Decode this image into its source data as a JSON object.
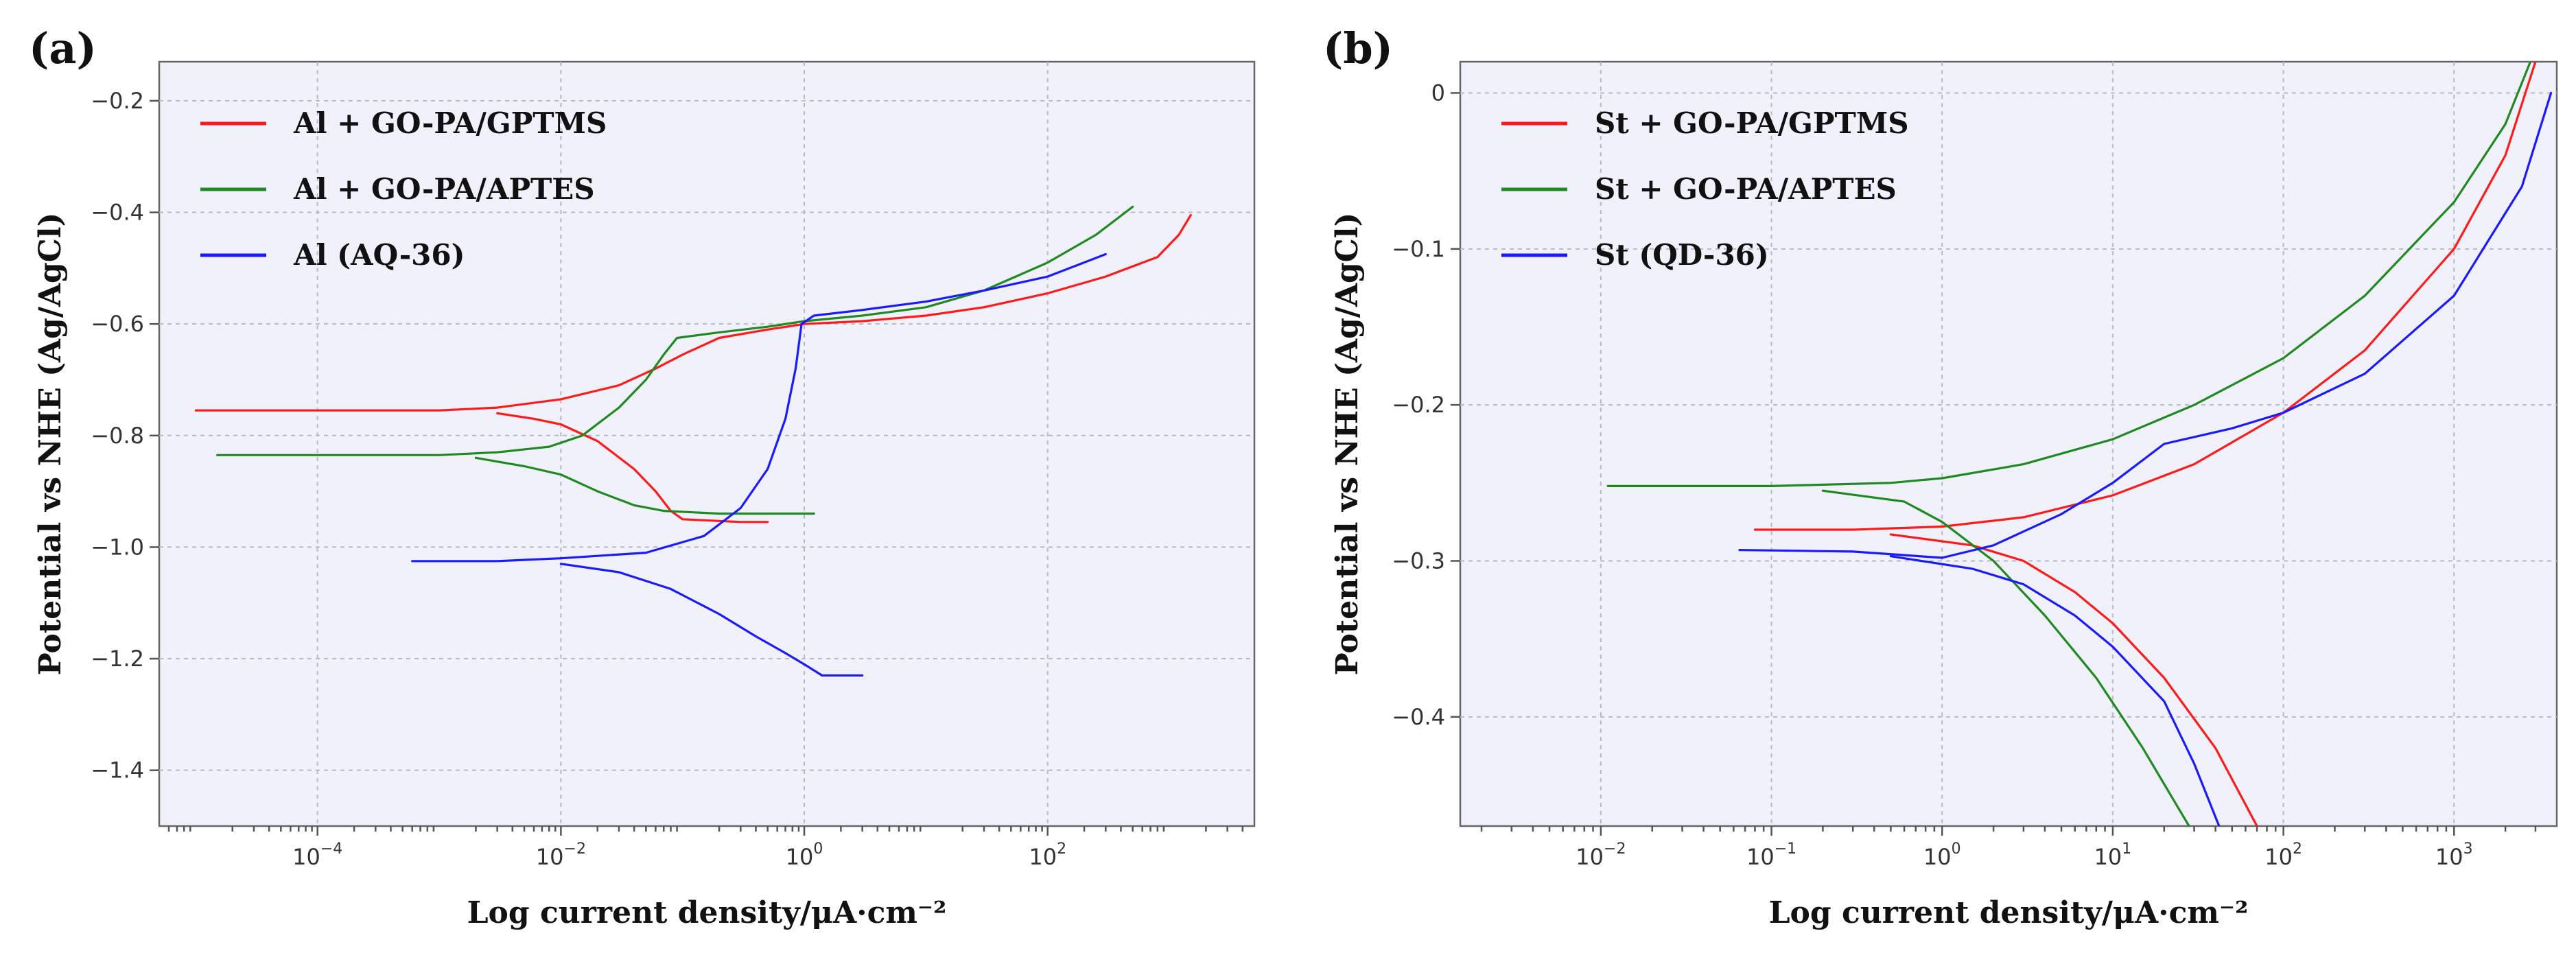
{
  "chart_data": [
    {
      "type": "line",
      "panel_label": "(a)",
      "xlabel": "Log current density/μA·cm⁻²",
      "ylabel": "Potential vs NHE (Ag/AgCl)",
      "xscale": "log",
      "xlim": [
        5e-06,
        5000
      ],
      "ylim": [
        -1.5,
        -0.13
      ],
      "xticks": [
        {
          "value": 0.0001,
          "base": "10",
          "exp": "−4"
        },
        {
          "value": 0.01,
          "base": "10",
          "exp": "−2"
        },
        {
          "value": 1,
          "base": "10",
          "exp": "0"
        },
        {
          "value": 100,
          "base": "10",
          "exp": "2"
        }
      ],
      "yticks": [
        {
          "value": -0.2,
          "label": "−0.2"
        },
        {
          "value": -0.4,
          "label": "−0.4"
        },
        {
          "value": -0.6,
          "label": "−0.6"
        },
        {
          "value": -0.8,
          "label": "−0.8"
        },
        {
          "value": -1.0,
          "label": "−1.0"
        },
        {
          "value": -1.2,
          "label": "−1.2"
        },
        {
          "value": -1.4,
          "label": "−1.4"
        }
      ],
      "grid": true,
      "legend_position": "top-left",
      "series": [
        {
          "name": "Al + GO-PA/GPTMS",
          "color": "#ff1a1a",
          "branches": [
            [
              [
                1e-05,
                -0.755
              ],
              [
                0.0003,
                -0.755
              ],
              [
                0.001,
                -0.755
              ],
              [
                0.003,
                -0.75
              ],
              [
                0.01,
                -0.735
              ],
              [
                0.03,
                -0.71
              ],
              [
                0.06,
                -0.68
              ],
              [
                0.1,
                -0.655
              ],
              [
                0.2,
                -0.625
              ],
              [
                0.5,
                -0.61
              ],
              [
                1,
                -0.6
              ],
              [
                3,
                -0.595
              ],
              [
                10,
                -0.585
              ],
              [
                30,
                -0.57
              ],
              [
                100,
                -0.545
              ],
              [
                300,
                -0.515
              ],
              [
                800,
                -0.48
              ],
              [
                1200,
                -0.44
              ],
              [
                1500,
                -0.405
              ]
            ],
            [
              [
                0.003,
                -0.76
              ],
              [
                0.006,
                -0.77
              ],
              [
                0.01,
                -0.78
              ],
              [
                0.02,
                -0.81
              ],
              [
                0.04,
                -0.86
              ],
              [
                0.06,
                -0.9
              ],
              [
                0.08,
                -0.935
              ],
              [
                0.1,
                -0.95
              ],
              [
                0.3,
                -0.955
              ],
              [
                0.5,
                -0.955
              ]
            ]
          ]
        },
        {
          "name": "Al + GO-PA/APTES",
          "color": "#1f8a1f",
          "branches": [
            [
              [
                1.5e-05,
                -0.835
              ],
              [
                0.001,
                -0.835
              ],
              [
                0.003,
                -0.83
              ],
              [
                0.008,
                -0.82
              ],
              [
                0.015,
                -0.8
              ],
              [
                0.03,
                -0.75
              ],
              [
                0.05,
                -0.7
              ],
              [
                0.07,
                -0.655
              ],
              [
                0.09,
                -0.625
              ],
              [
                0.2,
                -0.615
              ],
              [
                0.5,
                -0.605
              ],
              [
                1,
                -0.595
              ],
              [
                3,
                -0.585
              ],
              [
                10,
                -0.57
              ],
              [
                30,
                -0.54
              ],
              [
                100,
                -0.49
              ],
              [
                250,
                -0.44
              ],
              [
                500,
                -0.39
              ]
            ],
            [
              [
                0.002,
                -0.84
              ],
              [
                0.005,
                -0.855
              ],
              [
                0.01,
                -0.87
              ],
              [
                0.02,
                -0.9
              ],
              [
                0.04,
                -0.925
              ],
              [
                0.07,
                -0.935
              ],
              [
                0.2,
                -0.94
              ],
              [
                0.6,
                -0.94
              ],
              [
                1.2,
                -0.94
              ]
            ]
          ]
        },
        {
          "name": "Al (AQ-36)",
          "color": "#1a1aff",
          "branches": [
            [
              [
                0.0006,
                -1.025
              ],
              [
                0.003,
                -1.025
              ],
              [
                0.01,
                -1.02
              ],
              [
                0.05,
                -1.01
              ],
              [
                0.15,
                -0.98
              ],
              [
                0.3,
                -0.93
              ],
              [
                0.5,
                -0.86
              ],
              [
                0.7,
                -0.77
              ],
              [
                0.85,
                -0.68
              ],
              [
                0.95,
                -0.6
              ],
              [
                1.2,
                -0.585
              ],
              [
                3,
                -0.575
              ],
              [
                10,
                -0.56
              ],
              [
                30,
                -0.54
              ],
              [
                100,
                -0.515
              ],
              [
                300,
                -0.475
              ]
            ],
            [
              [
                0.01,
                -1.03
              ],
              [
                0.03,
                -1.045
              ],
              [
                0.08,
                -1.075
              ],
              [
                0.2,
                -1.12
              ],
              [
                0.4,
                -1.16
              ],
              [
                0.7,
                -1.19
              ],
              [
                1.0,
                -1.21
              ],
              [
                1.4,
                -1.23
              ],
              [
                3,
                -1.23
              ]
            ]
          ]
        }
      ]
    },
    {
      "type": "line",
      "panel_label": "(b)",
      "xlabel": "Log current density/μA·cm⁻²",
      "ylabel": "Potential vs NHE (Ag/AgCl)",
      "xscale": "log",
      "xlim": [
        0.0015,
        4000
      ],
      "ylim": [
        -0.47,
        0.02
      ],
      "xticks": [
        {
          "value": 0.01,
          "base": "10",
          "exp": "−2"
        },
        {
          "value": 0.1,
          "base": "10",
          "exp": "−1"
        },
        {
          "value": 1,
          "base": "10",
          "exp": "0"
        },
        {
          "value": 10,
          "base": "10",
          "exp": "1"
        },
        {
          "value": 100,
          "base": "10",
          "exp": "2"
        },
        {
          "value": 1000,
          "base": "10",
          "exp": "3"
        }
      ],
      "yticks": [
        {
          "value": 0,
          "label": "0"
        },
        {
          "value": -0.1,
          "label": "−0.1"
        },
        {
          "value": -0.2,
          "label": "−0.2"
        },
        {
          "value": -0.3,
          "label": "−0.3"
        },
        {
          "value": -0.4,
          "label": "−0.4"
        }
      ],
      "grid": true,
      "legend_position": "top-left",
      "series": [
        {
          "name": "St + GO-PA/GPTMS",
          "color": "#ff1a1a",
          "branches": [
            [
              [
                0.08,
                -0.28
              ],
              [
                0.3,
                -0.28
              ],
              [
                1,
                -0.278
              ],
              [
                3,
                -0.272
              ],
              [
                10,
                -0.258
              ],
              [
                30,
                -0.238
              ],
              [
                100,
                -0.205
              ],
              [
                300,
                -0.165
              ],
              [
                1000,
                -0.1
              ],
              [
                2000,
                -0.04
              ],
              [
                3000,
                0.02
              ]
            ],
            [
              [
                0.5,
                -0.283
              ],
              [
                1.5,
                -0.29
              ],
              [
                3,
                -0.3
              ],
              [
                6,
                -0.32
              ],
              [
                10,
                -0.34
              ],
              [
                20,
                -0.375
              ],
              [
                40,
                -0.42
              ],
              [
                70,
                -0.47
              ]
            ]
          ]
        },
        {
          "name": "St + GO-PA/APTES",
          "color": "#1f8a1f",
          "branches": [
            [
              [
                0.011,
                -0.252
              ],
              [
                0.1,
                -0.252
              ],
              [
                0.5,
                -0.25
              ],
              [
                1,
                -0.247
              ],
              [
                3,
                -0.238
              ],
              [
                10,
                -0.222
              ],
              [
                30,
                -0.2
              ],
              [
                100,
                -0.17
              ],
              [
                300,
                -0.13
              ],
              [
                1000,
                -0.07
              ],
              [
                2000,
                -0.02
              ],
              [
                2800,
                0.02
              ]
            ],
            [
              [
                0.2,
                -0.255
              ],
              [
                0.6,
                -0.262
              ],
              [
                1,
                -0.275
              ],
              [
                2,
                -0.3
              ],
              [
                4,
                -0.335
              ],
              [
                8,
                -0.375
              ],
              [
                15,
                -0.42
              ],
              [
                28,
                -0.47
              ]
            ]
          ]
        },
        {
          "name": "St (QD-36)",
          "color": "#1a1aff",
          "branches": [
            [
              [
                0.065,
                -0.293
              ],
              [
                0.3,
                -0.294
              ],
              [
                1,
                -0.298
              ],
              [
                2,
                -0.29
              ],
              [
                5,
                -0.27
              ],
              [
                10,
                -0.25
              ],
              [
                20,
                -0.225
              ],
              [
                50,
                -0.215
              ],
              [
                100,
                -0.205
              ],
              [
                300,
                -0.18
              ],
              [
                1000,
                -0.13
              ],
              [
                2500,
                -0.06
              ],
              [
                3700,
                0.0
              ]
            ],
            [
              [
                0.5,
                -0.297
              ],
              [
                1.5,
                -0.305
              ],
              [
                3,
                -0.315
              ],
              [
                6,
                -0.335
              ],
              [
                10,
                -0.355
              ],
              [
                20,
                -0.39
              ],
              [
                30,
                -0.43
              ],
              [
                42,
                -0.47
              ]
            ]
          ]
        }
      ]
    }
  ]
}
